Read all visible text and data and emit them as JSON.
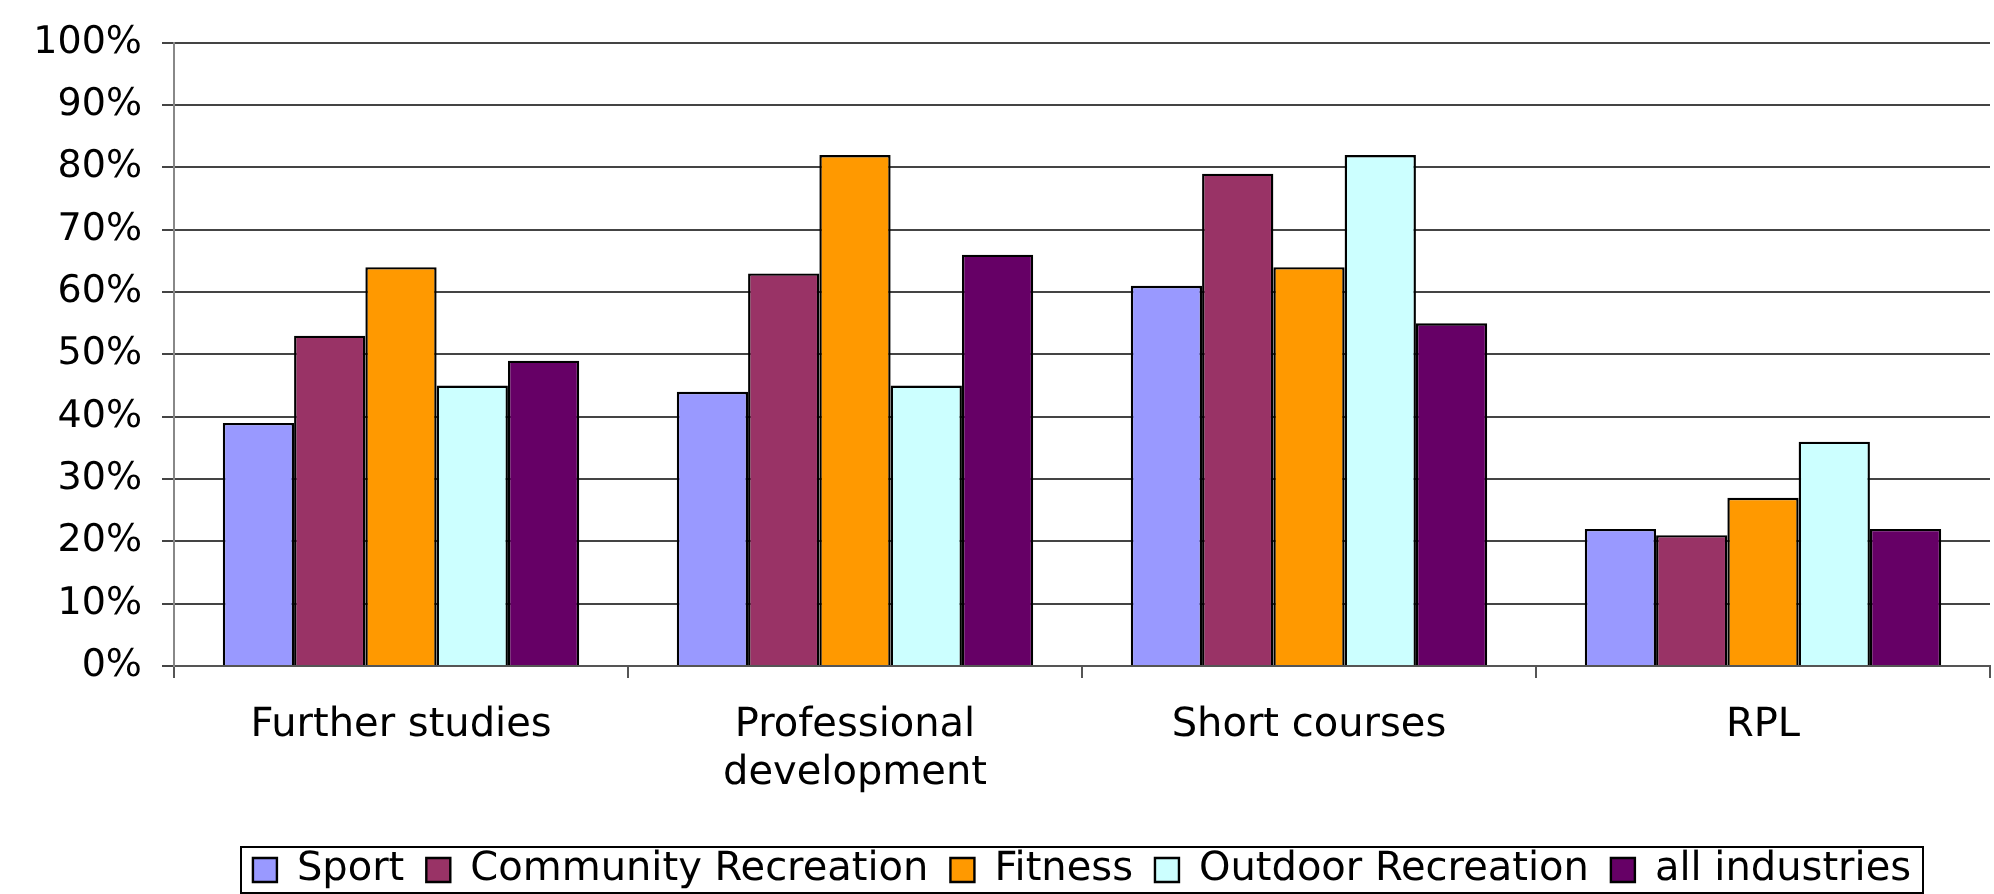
{
  "chart_data": {
    "type": "bar",
    "categories": [
      "Further studies",
      "Professional development",
      "Short courses",
      "RPL"
    ],
    "series": [
      {
        "name": "Sport",
        "color": "#9999ff",
        "values": [
          39,
          44,
          61,
          22
        ]
      },
      {
        "name": "Community Recreation",
        "color": "#993366",
        "values": [
          53,
          63,
          79,
          21
        ]
      },
      {
        "name": "Fitness",
        "color": "#ff9900",
        "values": [
          64,
          82,
          64,
          27
        ]
      },
      {
        "name": "Outdoor Recreation",
        "color": "#ccffff",
        "values": [
          45,
          45,
          82,
          36
        ]
      },
      {
        "name": "all industries",
        "color": "#660066",
        "values": [
          49,
          66,
          55,
          22
        ]
      }
    ],
    "ylim": [
      0,
      100
    ],
    "yticks": [
      {
        "value": 0,
        "label": "0%"
      },
      {
        "value": 10,
        "label": "10%"
      },
      {
        "value": 20,
        "label": "20%"
      },
      {
        "value": 30,
        "label": "30%"
      },
      {
        "value": 40,
        "label": "40%"
      },
      {
        "value": 50,
        "label": "50%"
      },
      {
        "value": 60,
        "label": "60%"
      },
      {
        "value": 70,
        "label": "70%"
      },
      {
        "value": 80,
        "label": "80%"
      },
      {
        "value": 90,
        "label": "90%"
      },
      {
        "value": 100,
        "label": "100%"
      }
    ],
    "grid": "y",
    "legend": "bottom"
  }
}
